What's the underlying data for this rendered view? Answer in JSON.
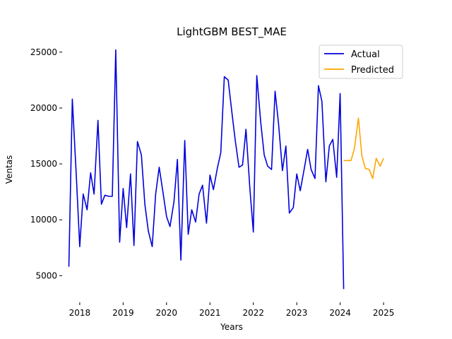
{
  "chart_data": {
    "type": "line",
    "title": "LightGBM BEST_MAE",
    "xlabel": "Years",
    "ylabel": "Ventas",
    "xlim": [
      2017.66,
      2025.34
    ],
    "ylim": [
      3000,
      26000
    ],
    "x_ticks": [
      2018,
      2019,
      2020,
      2021,
      2022,
      2023,
      2024,
      2025
    ],
    "y_ticks": [
      5000,
      10000,
      15000,
      20000,
      25000
    ],
    "x_tick_labels": [
      "2018",
      "2019",
      "2020",
      "2021",
      "2022",
      "2023",
      "2024",
      "2025"
    ],
    "y_tick_labels": [
      "5000",
      "10000",
      "15000",
      "20000",
      "25000"
    ],
    "grid": false,
    "legend_position": "top-right",
    "series": [
      {
        "name": "Actual",
        "color": "#0000dd",
        "points": [
          [
            2017.75,
            5800
          ],
          [
            2017.83,
            20800
          ],
          [
            2017.92,
            14000
          ],
          [
            2018.0,
            7600
          ],
          [
            2018.08,
            12300
          ],
          [
            2018.17,
            10900
          ],
          [
            2018.25,
            14200
          ],
          [
            2018.33,
            12300
          ],
          [
            2018.42,
            18900
          ],
          [
            2018.5,
            11400
          ],
          [
            2018.58,
            12200
          ],
          [
            2018.67,
            12100
          ],
          [
            2018.75,
            12100
          ],
          [
            2018.83,
            25200
          ],
          [
            2018.92,
            8000
          ],
          [
            2019.0,
            12800
          ],
          [
            2019.08,
            9300
          ],
          [
            2019.17,
            14100
          ],
          [
            2019.25,
            7700
          ],
          [
            2019.33,
            17000
          ],
          [
            2019.42,
            15800
          ],
          [
            2019.5,
            11400
          ],
          [
            2019.58,
            9000
          ],
          [
            2019.67,
            7600
          ],
          [
            2019.75,
            12300
          ],
          [
            2019.83,
            14700
          ],
          [
            2019.92,
            12400
          ],
          [
            2020.0,
            10300
          ],
          [
            2020.08,
            9400
          ],
          [
            2020.17,
            11600
          ],
          [
            2020.25,
            15400
          ],
          [
            2020.33,
            6400
          ],
          [
            2020.42,
            17100
          ],
          [
            2020.5,
            8700
          ],
          [
            2020.58,
            10900
          ],
          [
            2020.67,
            9800
          ],
          [
            2020.75,
            12300
          ],
          [
            2020.83,
            13100
          ],
          [
            2020.92,
            9700
          ],
          [
            2021.0,
            14000
          ],
          [
            2021.08,
            12700
          ],
          [
            2021.17,
            14600
          ],
          [
            2021.25,
            16000
          ],
          [
            2021.33,
            22800
          ],
          [
            2021.42,
            22500
          ],
          [
            2021.5,
            19800
          ],
          [
            2021.58,
            17200
          ],
          [
            2021.67,
            14700
          ],
          [
            2021.75,
            14900
          ],
          [
            2021.83,
            18100
          ],
          [
            2021.92,
            12800
          ],
          [
            2022.0,
            8900
          ],
          [
            2022.08,
            22900
          ],
          [
            2022.17,
            18700
          ],
          [
            2022.25,
            15800
          ],
          [
            2022.33,
            14800
          ],
          [
            2022.42,
            14500
          ],
          [
            2022.5,
            21500
          ],
          [
            2022.58,
            18600
          ],
          [
            2022.67,
            14400
          ],
          [
            2022.75,
            16600
          ],
          [
            2022.83,
            10600
          ],
          [
            2022.92,
            11100
          ],
          [
            2023.0,
            14100
          ],
          [
            2023.08,
            12600
          ],
          [
            2023.17,
            14500
          ],
          [
            2023.25,
            16300
          ],
          [
            2023.33,
            14500
          ],
          [
            2023.42,
            13700
          ],
          [
            2023.5,
            22000
          ],
          [
            2023.58,
            20600
          ],
          [
            2023.67,
            13400
          ],
          [
            2023.75,
            16600
          ],
          [
            2023.83,
            17200
          ],
          [
            2023.92,
            13800
          ],
          [
            2024.0,
            21300
          ],
          [
            2024.08,
            3800
          ]
        ]
      },
      {
        "name": "Predicted",
        "color": "#ffa500",
        "points": [
          [
            2024.08,
            15300
          ],
          [
            2024.17,
            15300
          ],
          [
            2024.25,
            15300
          ],
          [
            2024.33,
            16400
          ],
          [
            2024.42,
            19100
          ],
          [
            2024.5,
            15700
          ],
          [
            2024.58,
            14600
          ],
          [
            2024.67,
            14500
          ],
          [
            2024.75,
            13700
          ],
          [
            2024.83,
            15500
          ],
          [
            2024.92,
            14800
          ],
          [
            2025.0,
            15500
          ]
        ]
      }
    ]
  }
}
